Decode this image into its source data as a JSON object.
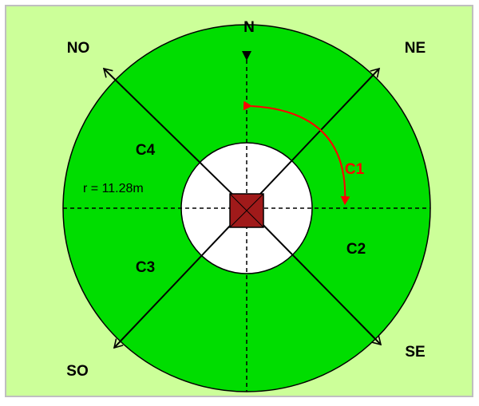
{
  "colors": {
    "background": "#ccff99",
    "border": "#bfbfbf",
    "ring": "#00dd00",
    "center_zone": "#ffffff",
    "center_square": "#a01a1a",
    "arrow_c1": "#ff0000"
  },
  "directions": {
    "n": "N",
    "ne": "NE",
    "se": "SE",
    "so": "SO",
    "no": "NO"
  },
  "sectors": {
    "c1": "C1",
    "c2": "C2",
    "c3": "C3",
    "c4": "C4"
  },
  "radius_label": "r = 11.28m"
}
